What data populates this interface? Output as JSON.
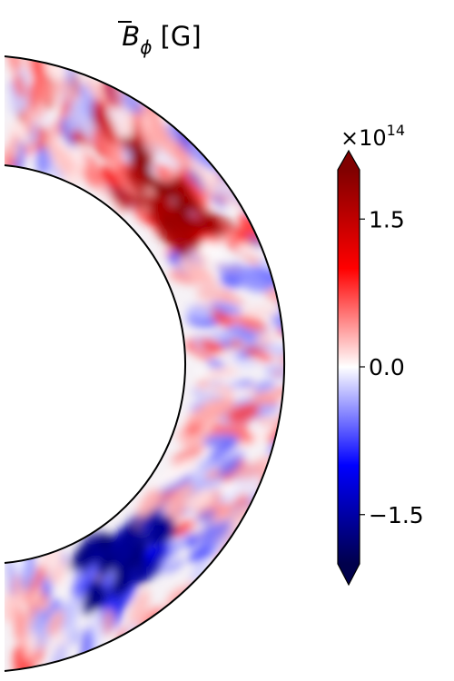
{
  "chart_data": {
    "type": "heatmap",
    "geometry": "meridional half-annulus (spherical shell slice)",
    "title": {
      "base": "B",
      "overbar": true,
      "subscript": "ϕ",
      "unit": " [G]"
    },
    "colorbar": {
      "multiplier_base": "×10",
      "multiplier_exponent": "14",
      "ticks": [
        "1.5",
        "0.0",
        "−1.5"
      ],
      "tick_values": [
        1.5,
        0.0,
        -1.5
      ],
      "range": [
        -2.0,
        2.0
      ],
      "extend": "both",
      "colormap": "seismic",
      "colormap_stops": [
        "#00004c",
        "#0000ff",
        "#ffffff",
        "#ff0000",
        "#800000"
      ]
    },
    "field_description": "small-scale mixed-sign toroidal field; strong positive band in northern mid-latitudes near inner boundary, strong negative band in southern mid-latitudes near inner boundary"
  }
}
